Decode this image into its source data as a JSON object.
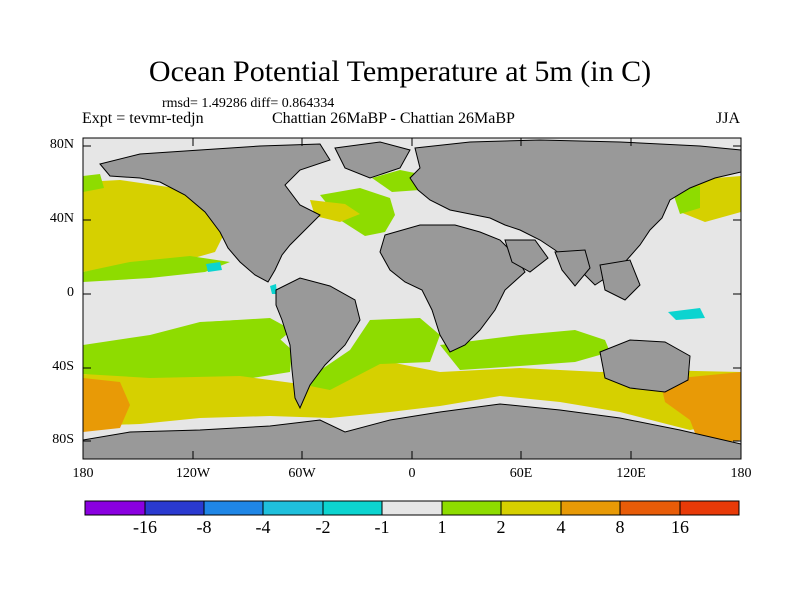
{
  "title": "Ocean Potential Temperature at 5m (in C)",
  "stats_line": "rmsd= 1.49286 diff= 0.864334",
  "experiment": "Expt = tevmr-tedjn",
  "comparison": "Chattian  26MaBP - Chattian  26MaBP",
  "season": "JJA",
  "axes": {
    "y_ticks": [
      "80N",
      "40N",
      "0",
      "40S",
      "80S"
    ],
    "x_ticks": [
      "180",
      "120W",
      "60W",
      "0",
      "60E",
      "120E",
      "180"
    ]
  },
  "colorbar": {
    "colors": [
      "#8a00e0",
      "#2a3ad0",
      "#1f86e6",
      "#1fc0dc",
      "#0cd4d0",
      "#e6e6e6",
      "#8edc00",
      "#d6d000",
      "#e89a06",
      "#e85c08",
      "#e83a08"
    ],
    "labels": [
      "-16",
      "-8",
      "-4",
      "-2",
      "-1",
      "1",
      "2",
      "4",
      "8",
      "16"
    ]
  },
  "map_colors": {
    "land": "#999999",
    "ocean_neutral": "#e6e6e6",
    "band_1_2": "#8edc00",
    "band_2_4": "#d6d000",
    "band_4_8": "#e89a06",
    "band_neg_2_1": "#0cd4d0"
  }
}
